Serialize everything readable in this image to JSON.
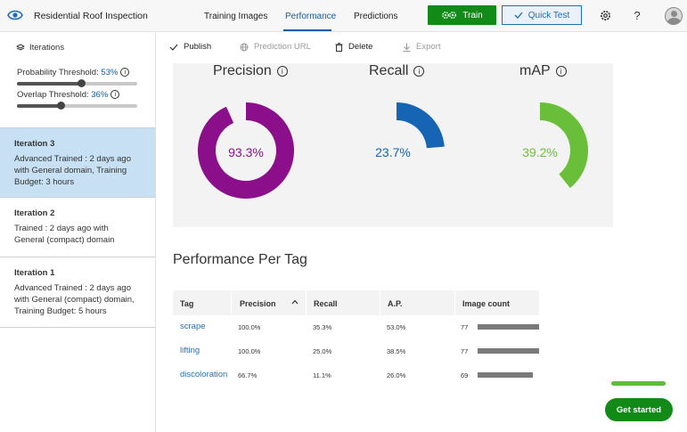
{
  "header": {
    "app_title": "Residential Roof Inspection",
    "tabs": [
      {
        "label": "Training Images",
        "active": false
      },
      {
        "label": "Performance",
        "active": true
      },
      {
        "label": "Predictions",
        "active": false
      }
    ],
    "train_label": "Train",
    "quick_test_label": "Quick Test"
  },
  "sidebar": {
    "iterations_label": "Iterations",
    "probability_threshold": {
      "label": "Probability Threshold:",
      "value": "53%",
      "fraction": 0.53
    },
    "overlap_threshold": {
      "label": "Overlap Threshold:",
      "value": "36%",
      "fraction": 0.36
    },
    "iterations": [
      {
        "name": "Iteration 3",
        "description": "Advanced Trained : 2 days ago with General domain, Training Budget: 3 hours",
        "selected": true
      },
      {
        "name": "Iteration 2",
        "description": "Trained : 2 days ago with General (compact) domain",
        "selected": false
      },
      {
        "name": "Iteration 1",
        "description": "Advanced Trained : 2 days ago with General (compact) domain, Training Budget: 5 hours",
        "selected": false
      }
    ]
  },
  "toolbar": {
    "publish": "Publish",
    "prediction_url": "Prediction URL",
    "delete": "Delete",
    "export": "Export"
  },
  "metrics": [
    {
      "title": "Precision",
      "value": "93.3%",
      "fraction": 0.933,
      "color": "#8b0f8b"
    },
    {
      "title": "Recall",
      "value": "23.7%",
      "fraction": 0.237,
      "color": "#1565b4"
    },
    {
      "title": "mAP",
      "value": "39.2%",
      "fraction": 0.392,
      "color": "#6abf3a"
    }
  ],
  "per_tag": {
    "title": "Performance Per Tag",
    "columns": [
      "Tag",
      "Precision",
      "Recall",
      "A.P.",
      "Image count"
    ],
    "rows": [
      {
        "tag": "scrape",
        "precision": "100.0%",
        "recall": "35.3%",
        "ap": "53.0%",
        "count": "77",
        "count_value": 77
      },
      {
        "tag": "lifting",
        "precision": "100.0%",
        "recall": "25.0%",
        "ap": "38.5%",
        "count": "77",
        "count_value": 77
      },
      {
        "tag": "discoloration",
        "precision": "66.7%",
        "recall": "11.1%",
        "ap": "26.0%",
        "count": "69",
        "count_value": 69
      }
    ]
  },
  "get_started": {
    "label": "Get started"
  },
  "colors": {
    "accent": "#0f5ea9",
    "train_green": "#118a18",
    "selected_bg": "#c7e0f4"
  }
}
